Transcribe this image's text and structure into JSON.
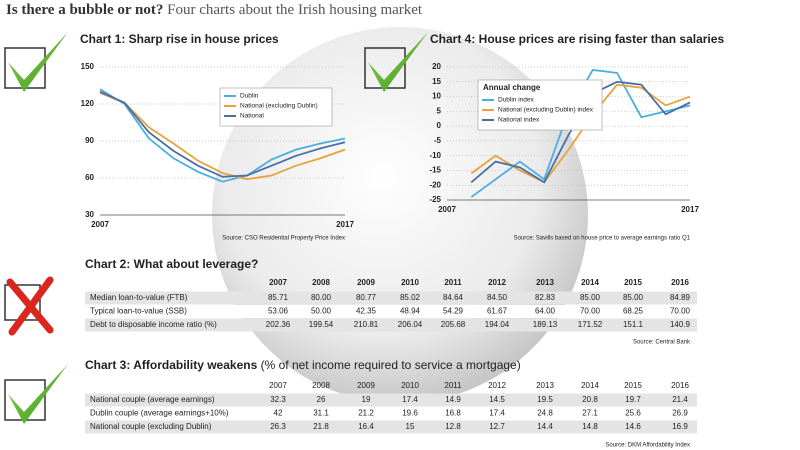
{
  "header": {
    "title_bold": "Is there a bubble or not?",
    "title_rest": "Four charts about the Irish housing market"
  },
  "chart_data": [
    {
      "type": "line",
      "title": "Chart 1: Sharp rise in house prices",
      "x": [
        2007,
        2008,
        2009,
        2010,
        2011,
        2012,
        2013,
        2014,
        2015,
        2016,
        2017
      ],
      "xlim": [
        2007,
        2017
      ],
      "xticks": [
        2007,
        2017
      ],
      "ylim": [
        30,
        150
      ],
      "yticks": [
        30,
        60,
        90,
        120,
        150
      ],
      "grid": true,
      "series": [
        {
          "name": "Dublin",
          "color": "#4aaee0",
          "values": [
            132,
            120,
            92,
            76,
            65,
            57,
            62,
            75,
            83,
            88,
            92
          ]
        },
        {
          "name": "National (excluding Dublin)",
          "color": "#e8a23a",
          "values": [
            129,
            121,
            101,
            88,
            74,
            64,
            59,
            62,
            70,
            76,
            83
          ]
        },
        {
          "name": "National",
          "color": "#4a6fa5",
          "values": [
            130,
            121,
            97,
            82,
            70,
            61,
            62,
            70,
            78,
            84,
            89
          ]
        }
      ],
      "source": "Source: CSO Residential Property Price Index"
    },
    {
      "type": "line",
      "title": "Chart 4: House prices are rising faster than salaries",
      "x": [
        2008,
        2009,
        2010,
        2011,
        2012,
        2013,
        2014,
        2015,
        2016,
        2017
      ],
      "xlim": [
        2007,
        2017
      ],
      "xticks": [
        2007,
        2017
      ],
      "ylim": [
        -25,
        20
      ],
      "yticks": [
        -25,
        -20,
        -15,
        -10,
        -5,
        0,
        5,
        10,
        15,
        20
      ],
      "grid": true,
      "legend_title": "Annual change",
      "series": [
        {
          "name": "Dublin index",
          "color": "#4aaee0",
          "values": [
            -24,
            -18,
            -12,
            -18,
            5,
            19,
            18,
            3,
            5,
            7
          ]
        },
        {
          "name": "National (excluding Dublin) index",
          "color": "#e8a23a",
          "values": [
            -16,
            -10,
            -15,
            -19,
            -8,
            4,
            14,
            13,
            7,
            10
          ]
        },
        {
          "name": "National index",
          "color": "#4a6fa5",
          "values": [
            -19,
            -12,
            -14,
            -19,
            -3,
            11,
            15,
            14,
            4,
            8
          ]
        }
      ],
      "source": "Source: Savills based on house price to average earnings ratio Q1"
    }
  ],
  "tables": [
    {
      "title": "Chart 2: What about leverage?",
      "columns": [
        "2007",
        "2008",
        "2009",
        "2010",
        "2011",
        "2012",
        "2013",
        "2014",
        "2015",
        "2016"
      ],
      "rows": [
        {
          "label": "Median loan-to-value (FTB)",
          "values": [
            "85.71",
            "80.00",
            "80.77",
            "85.02",
            "84.64",
            "84.50",
            "82.83",
            "85.00",
            "85.00",
            "84.89"
          ]
        },
        {
          "label": "Typical loan-to-value (SSB)",
          "values": [
            "53.06",
            "50.00",
            "42.35",
            "48.94",
            "54.29",
            "61.67",
            "64.00",
            "70.00",
            "68.25",
            "70.00"
          ]
        },
        {
          "label": "Debt to disposable income ratio (%)",
          "values": [
            "202.36",
            "199.54",
            "210.81",
            "206.04",
            "205.68",
            "194.04",
            "189.13",
            "171.52",
            "151.1",
            "140.9"
          ]
        }
      ],
      "source": "Source: Central Bank"
    },
    {
      "title": "Chart 3: Affordability weakens",
      "title_note": "(% of net income required to service a mortgage)",
      "columns": [
        "2007",
        "2008",
        "2009",
        "2010",
        "2011",
        "2012",
        "2013",
        "2014",
        "2015",
        "2016"
      ],
      "rows": [
        {
          "label": "National couple (average earnings)",
          "values": [
            "32.3",
            "26",
            "19",
            "17.4",
            "14.9",
            "14.5",
            "19.5",
            "20.8",
            "19.7",
            "21.4"
          ]
        },
        {
          "label": "Dublin couple (average earnings+10%)",
          "values": [
            "42",
            "31.1",
            "21.2",
            "19.6",
            "16.8",
            "17.4",
            "24.8",
            "27.1",
            "25.6",
            "26.9"
          ]
        },
        {
          "label": "National couple (excluding Dublin)",
          "values": [
            "26.3",
            "21.8",
            "16.4",
            "15",
            "12.8",
            "12.7",
            "14.4",
            "14.8",
            "14.6",
            "16.9"
          ]
        }
      ],
      "source": "Source: DKM Affordability Index"
    }
  ]
}
